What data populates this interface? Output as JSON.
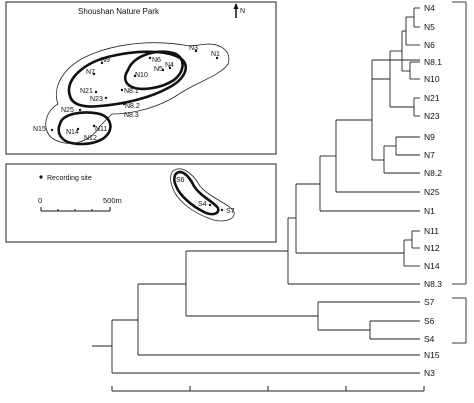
{
  "map": {
    "title": "Shoushan Nature Park",
    "north_label": "N",
    "legend_label": "Recording site",
    "scale_start": "0",
    "scale_end": "500m",
    "sites": [
      {
        "label": "N1"
      },
      {
        "label": "N3"
      },
      {
        "label": "N4"
      },
      {
        "label": "N5"
      },
      {
        "label": "N6"
      },
      {
        "label": "N7"
      },
      {
        "label": "N9"
      },
      {
        "label": "N10"
      },
      {
        "label": "N8.1"
      },
      {
        "label": "N21"
      },
      {
        "label": "N23"
      },
      {
        "label": "N25"
      },
      {
        "label": "N8.2"
      },
      {
        "label": "N8.3"
      },
      {
        "label": "N11"
      },
      {
        "label": "N14"
      },
      {
        "label": "N12"
      },
      {
        "label": "N15"
      },
      {
        "label": "S6"
      },
      {
        "label": "S4"
      },
      {
        "label": "S7"
      }
    ]
  },
  "dendrogram": {
    "leaves": [
      "N4",
      "N5",
      "N6",
      "N8.1",
      "N10",
      "N21",
      "N23",
      "N9",
      "N7",
      "N8.2",
      "N25",
      "N1",
      "N11",
      "N12",
      "N14",
      "N8.3",
      "S7",
      "S6",
      "S4",
      "N15",
      "N3"
    ]
  }
}
